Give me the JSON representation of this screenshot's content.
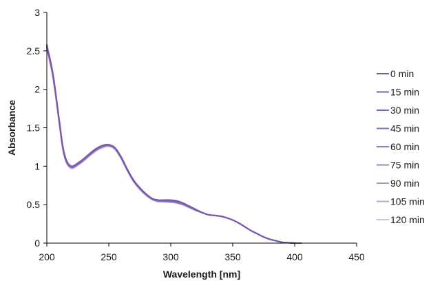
{
  "chart_data": {
    "type": "line",
    "xlabel": "Wavelength [nm]",
    "ylabel": "Absorbance",
    "xlim": [
      200,
      450
    ],
    "ylim": [
      0,
      3
    ],
    "xticks": [
      200,
      250,
      300,
      350,
      400,
      450
    ],
    "yticks": [
      0,
      0.5,
      1,
      1.5,
      2,
      2.5,
      3
    ],
    "grid": false,
    "legend_position": "right",
    "x": [
      200,
      205,
      210,
      213,
      216,
      220,
      225,
      230,
      235,
      240,
      245,
      250,
      255,
      260,
      265,
      270,
      275,
      280,
      285,
      290,
      295,
      300,
      305,
      310,
      315,
      320,
      325,
      330,
      335,
      340,
      345,
      350,
      355,
      360,
      365,
      370,
      375,
      380,
      385,
      390,
      395,
      400,
      405
    ],
    "series": [
      {
        "name": "0 min",
        "color": "#7a5aae",
        "values": [
          2.58,
          2.2,
          1.6,
          1.25,
          1.07,
          1.0,
          1.04,
          1.1,
          1.17,
          1.23,
          1.27,
          1.28,
          1.24,
          1.12,
          0.96,
          0.82,
          0.72,
          0.64,
          0.58,
          0.56,
          0.56,
          0.56,
          0.55,
          0.52,
          0.48,
          0.44,
          0.4,
          0.37,
          0.36,
          0.35,
          0.33,
          0.3,
          0.26,
          0.21,
          0.16,
          0.12,
          0.08,
          0.05,
          0.03,
          0.01,
          0.005,
          0.0,
          0.0
        ]
      },
      {
        "name": "15 min",
        "color": "#7e5fb1",
        "values": [
          2.57,
          2.19,
          1.6,
          1.25,
          1.07,
          1.0,
          1.04,
          1.1,
          1.17,
          1.23,
          1.27,
          1.28,
          1.24,
          1.12,
          0.96,
          0.82,
          0.72,
          0.64,
          0.58,
          0.56,
          0.56,
          0.555,
          0.545,
          0.52,
          0.48,
          0.44,
          0.4,
          0.37,
          0.36,
          0.35,
          0.33,
          0.3,
          0.26,
          0.21,
          0.16,
          0.12,
          0.08,
          0.05,
          0.03,
          0.01,
          0.005,
          0.0,
          0.0
        ]
      },
      {
        "name": "30 min",
        "color": "#8466b5",
        "values": [
          2.56,
          2.18,
          1.59,
          1.24,
          1.06,
          0.99,
          1.03,
          1.09,
          1.16,
          1.22,
          1.26,
          1.27,
          1.23,
          1.11,
          0.95,
          0.81,
          0.71,
          0.64,
          0.58,
          0.555,
          0.555,
          0.55,
          0.54,
          0.515,
          0.475,
          0.435,
          0.4,
          0.37,
          0.36,
          0.35,
          0.33,
          0.3,
          0.26,
          0.21,
          0.16,
          0.12,
          0.08,
          0.05,
          0.03,
          0.01,
          0.005,
          0.0,
          0.0
        ]
      },
      {
        "name": "45 min",
        "color": "#8a6eb9",
        "values": [
          2.55,
          2.18,
          1.59,
          1.24,
          1.06,
          0.99,
          1.03,
          1.09,
          1.16,
          1.22,
          1.26,
          1.27,
          1.23,
          1.11,
          0.95,
          0.81,
          0.71,
          0.63,
          0.575,
          0.55,
          0.55,
          0.545,
          0.535,
          0.51,
          0.47,
          0.43,
          0.4,
          0.37,
          0.36,
          0.35,
          0.33,
          0.3,
          0.26,
          0.21,
          0.16,
          0.12,
          0.08,
          0.05,
          0.03,
          0.01,
          0.005,
          0.0,
          0.0
        ]
      },
      {
        "name": "60 min",
        "color": "#9177bd",
        "values": [
          2.55,
          2.17,
          1.58,
          1.23,
          1.05,
          0.99,
          1.03,
          1.09,
          1.16,
          1.22,
          1.26,
          1.27,
          1.23,
          1.11,
          0.95,
          0.81,
          0.71,
          0.63,
          0.575,
          0.55,
          0.55,
          0.545,
          0.53,
          0.505,
          0.47,
          0.43,
          0.4,
          0.37,
          0.36,
          0.35,
          0.33,
          0.3,
          0.26,
          0.21,
          0.16,
          0.12,
          0.08,
          0.05,
          0.03,
          0.01,
          0.005,
          0.0,
          0.0
        ]
      },
      {
        "name": "75 min",
        "color": "#9a82c3",
        "values": [
          2.54,
          2.17,
          1.58,
          1.23,
          1.05,
          0.98,
          1.02,
          1.08,
          1.15,
          1.21,
          1.25,
          1.27,
          1.23,
          1.11,
          0.95,
          0.81,
          0.71,
          0.63,
          0.57,
          0.545,
          0.545,
          0.54,
          0.53,
          0.505,
          0.47,
          0.43,
          0.4,
          0.37,
          0.36,
          0.35,
          0.33,
          0.3,
          0.26,
          0.21,
          0.16,
          0.12,
          0.08,
          0.05,
          0.03,
          0.01,
          0.005,
          0.0,
          0.0
        ]
      },
      {
        "name": "90 min",
        "color": "#a792cb",
        "values": [
          2.54,
          2.16,
          1.57,
          1.22,
          1.05,
          0.98,
          1.02,
          1.08,
          1.15,
          1.21,
          1.25,
          1.27,
          1.23,
          1.11,
          0.95,
          0.81,
          0.71,
          0.63,
          0.57,
          0.545,
          0.54,
          0.535,
          0.525,
          0.5,
          0.465,
          0.43,
          0.4,
          0.37,
          0.36,
          0.35,
          0.33,
          0.3,
          0.26,
          0.21,
          0.16,
          0.12,
          0.08,
          0.05,
          0.03,
          0.01,
          0.005,
          0.0,
          0.0
        ]
      },
      {
        "name": "105 min",
        "color": "#b9a8d6",
        "values": [
          2.53,
          2.16,
          1.57,
          1.22,
          1.04,
          0.98,
          1.02,
          1.08,
          1.15,
          1.21,
          1.25,
          1.26,
          1.22,
          1.1,
          0.94,
          0.8,
          0.7,
          0.63,
          0.57,
          0.54,
          0.54,
          0.535,
          0.52,
          0.5,
          0.465,
          0.43,
          0.4,
          0.37,
          0.36,
          0.35,
          0.33,
          0.3,
          0.26,
          0.21,
          0.16,
          0.12,
          0.08,
          0.05,
          0.03,
          0.01,
          0.005,
          0.0,
          0.0
        ]
      },
      {
        "name": "120 min",
        "color": "#cdc0e2",
        "values": [
          2.52,
          2.15,
          1.56,
          1.21,
          1.04,
          0.97,
          1.01,
          1.07,
          1.14,
          1.2,
          1.24,
          1.26,
          1.22,
          1.1,
          0.94,
          0.8,
          0.7,
          0.62,
          0.565,
          0.54,
          0.535,
          0.53,
          0.52,
          0.495,
          0.46,
          0.425,
          0.395,
          0.37,
          0.36,
          0.35,
          0.33,
          0.3,
          0.26,
          0.21,
          0.16,
          0.12,
          0.08,
          0.05,
          0.03,
          0.01,
          0.005,
          0.0,
          0.0
        ]
      }
    ]
  }
}
